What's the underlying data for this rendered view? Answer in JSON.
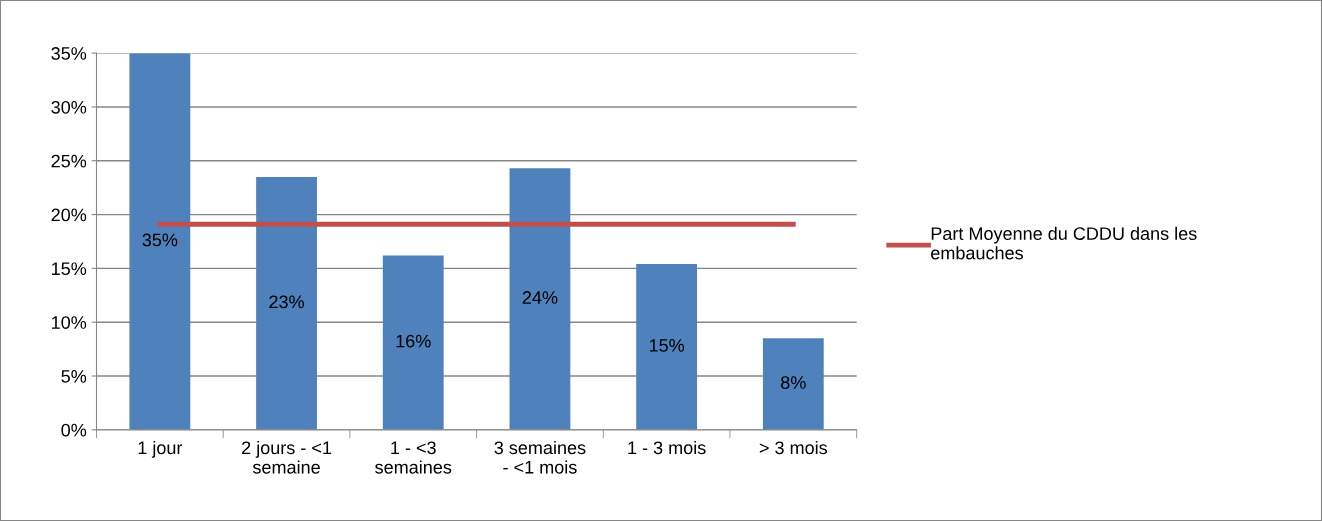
{
  "chart_data": {
    "type": "bar",
    "categories": [
      "1 jour",
      "2 jours - <1\nsemaine",
      "1 - <3\nsemaines",
      "3 semaines\n- <1 mois",
      "1 - 3 mois",
      "> 3 mois"
    ],
    "series": [
      {
        "color": "#4f81bd",
        "values": [
          35.0,
          23.5,
          16.2,
          24.3,
          15.4,
          8.5
        ],
        "value_labels": [
          "35%",
          "23%",
          "16%",
          "24%",
          "15%",
          "8%"
        ]
      },
      {
        "type": "line",
        "name": "Part Moyenne du CDDU dans les\nembauches",
        "color": "#c0504d",
        "values": [
          19.1,
          19.1,
          19.1,
          19.1,
          19.1,
          19.1
        ]
      }
    ],
    "ylim": [
      0,
      35
    ],
    "yticks": [
      {
        "value": 0,
        "label": "0%"
      },
      {
        "value": 5,
        "label": "5%"
      },
      {
        "value": 10,
        "label": "10%"
      },
      {
        "value": 15,
        "label": "15%"
      },
      {
        "value": 20,
        "label": "20%"
      },
      {
        "value": 25,
        "label": "25%"
      },
      {
        "value": 30,
        "label": "30%"
      },
      {
        "value": 35,
        "label": "35%"
      }
    ],
    "grid": "y",
    "legend": "right",
    "marker": "none"
  }
}
